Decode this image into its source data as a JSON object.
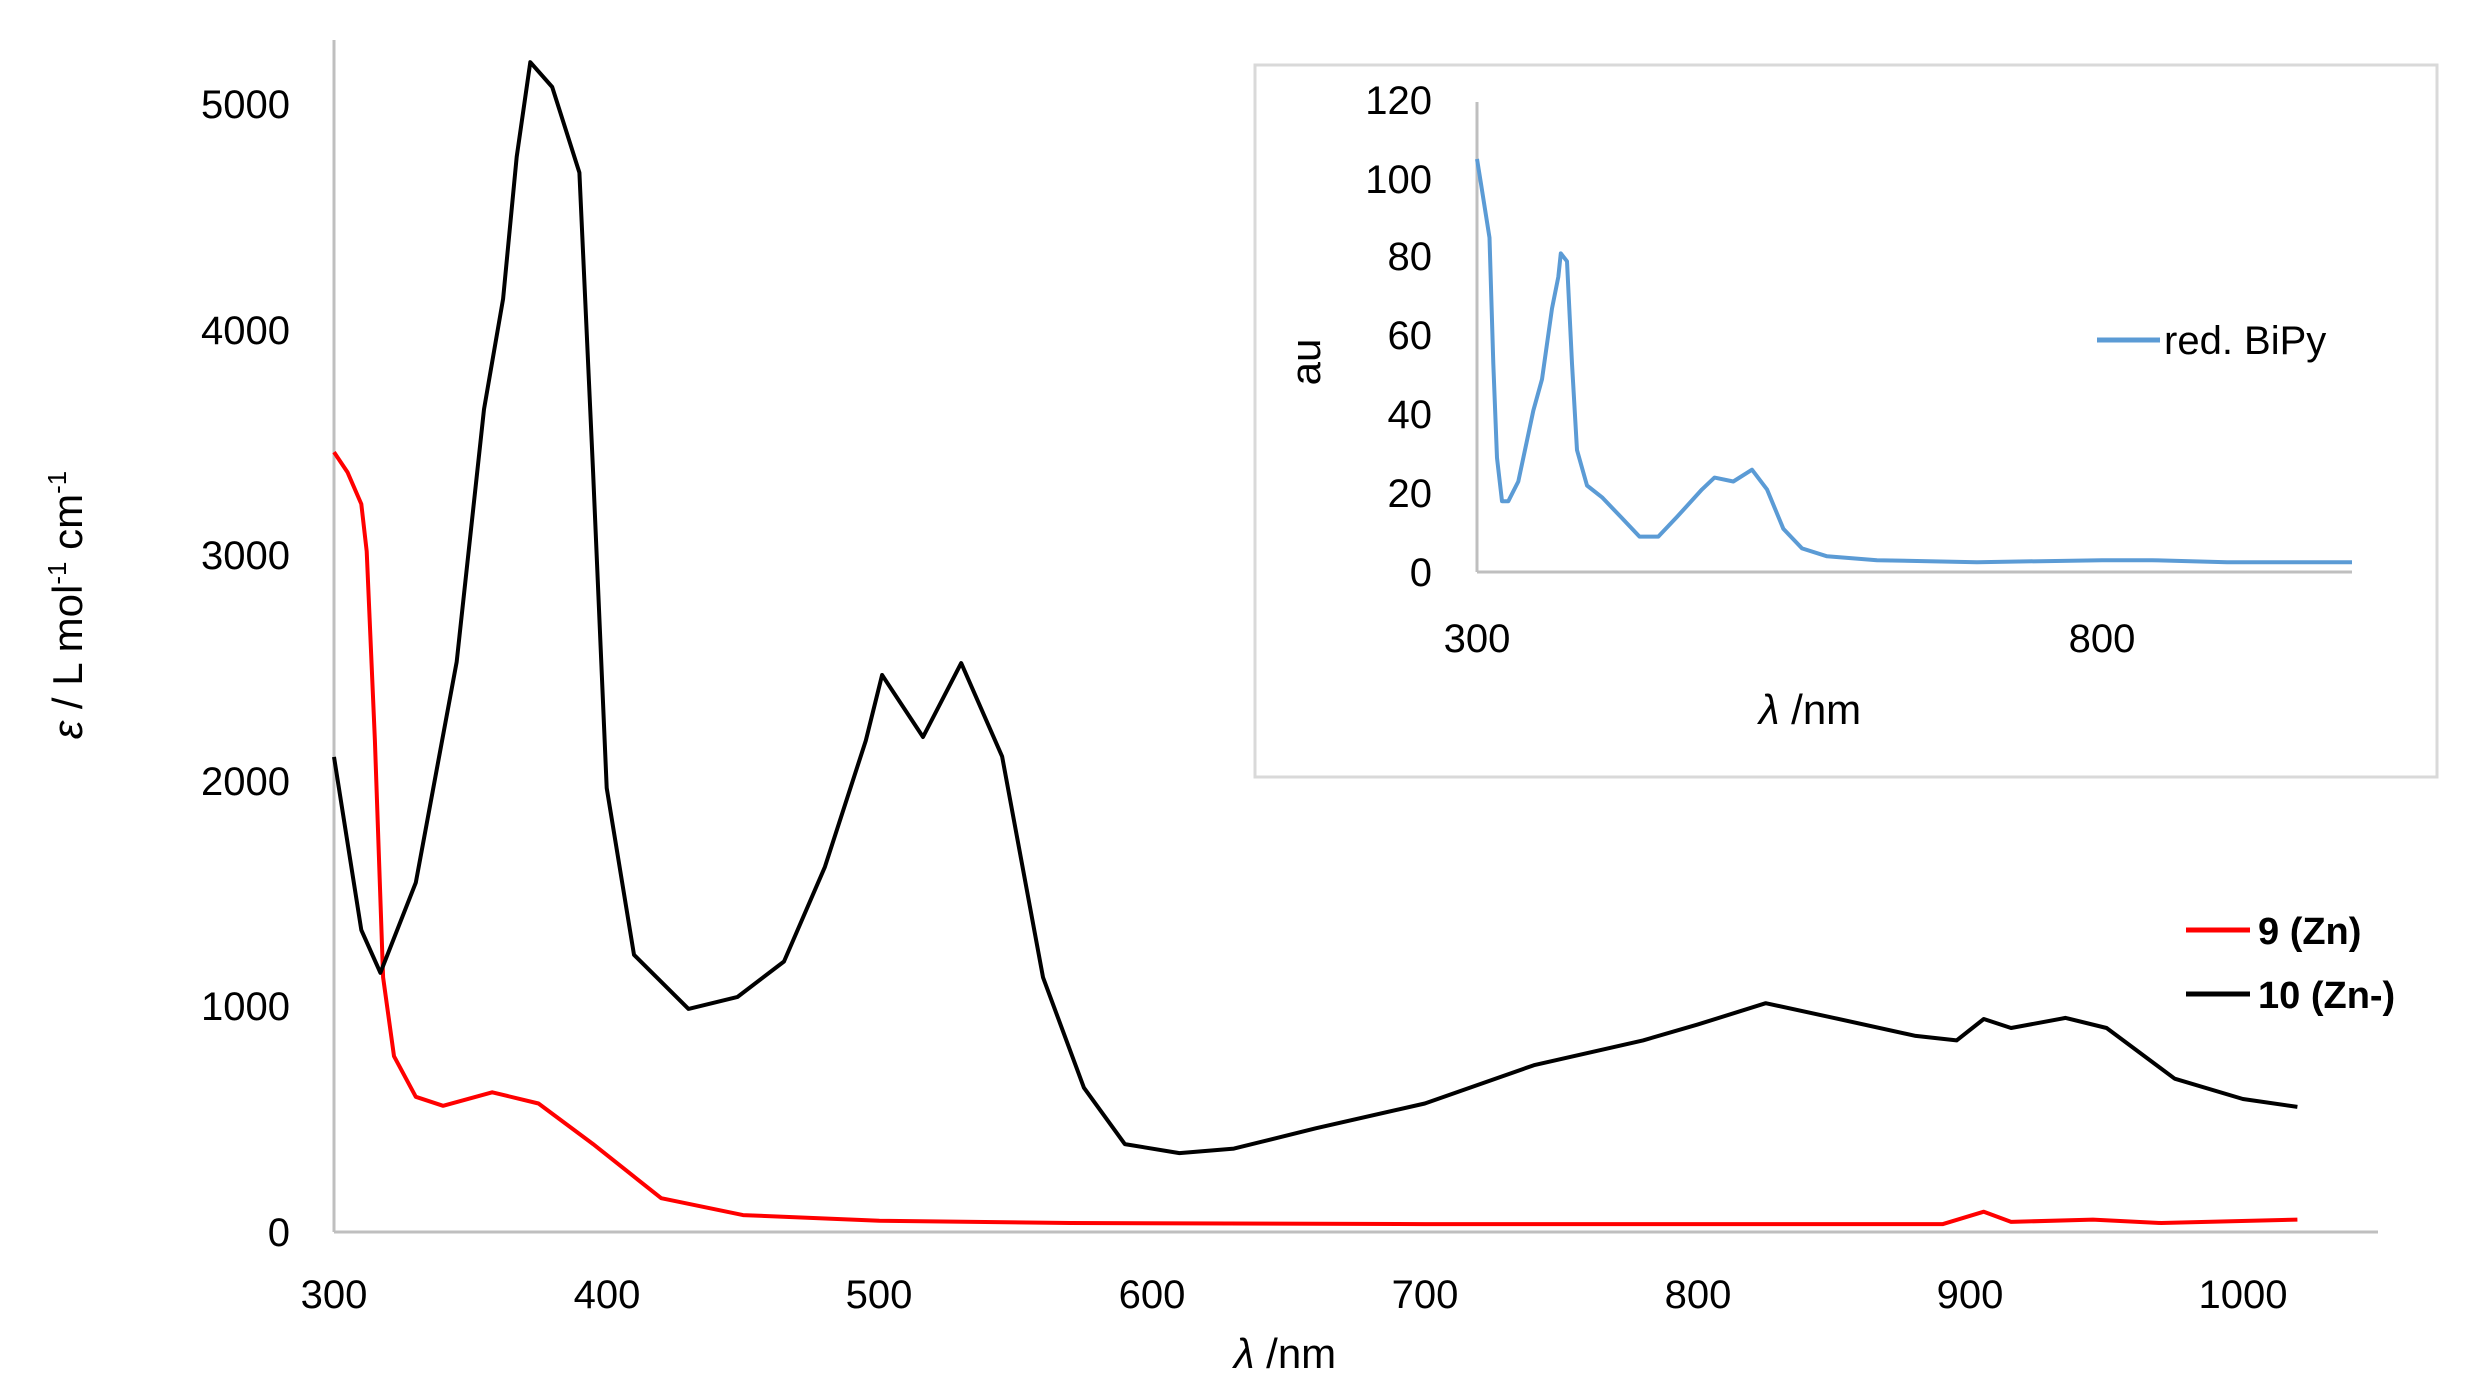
{
  "chart_data": [
    {
      "type": "line",
      "title": "",
      "xlabel": "λ /nm",
      "ylabel": "ε / L mol-1 cm-1",
      "xlim": [
        300,
        1050
      ],
      "ylim": [
        0,
        5200
      ],
      "xticks": [
        300,
        400,
        500,
        600,
        700,
        800,
        900,
        1000
      ],
      "yticks": [
        0,
        1000,
        2000,
        3000,
        4000,
        5000
      ],
      "grid": false,
      "legend_position": "right-middle",
      "series": [
        {
          "name": "9 (Zn)",
          "color": "#ff0000",
          "x": [
            300,
            305,
            310,
            312,
            315,
            318,
            322,
            330,
            340,
            358,
            375,
            395,
            420,
            450,
            500,
            570,
            700,
            890,
            905,
            915,
            945,
            970,
            1020
          ],
          "y": [
            3460,
            3370,
            3230,
            3020,
            2180,
            1130,
            780,
            600,
            560,
            620,
            570,
            390,
            150,
            75,
            50,
            40,
            35,
            35,
            90,
            45,
            55,
            40,
            55
          ]
        },
        {
          "name": "10 (Zn-)",
          "color": "#000000",
          "x": [
            300,
            310,
            317,
            330,
            345,
            355,
            362,
            367,
            372,
            380,
            390,
            395,
            400,
            410,
            430,
            448,
            465,
            480,
            495,
            501,
            516,
            530,
            545,
            560,
            575,
            590,
            610,
            630,
            660,
            700,
            740,
            780,
            800,
            825,
            850,
            880,
            895,
            905,
            915,
            935,
            950,
            975,
            1000,
            1020
          ],
          "y": [
            2108,
            1340,
            1150,
            1550,
            2530,
            3650,
            4140,
            4770,
            5190,
            5080,
            4700,
            3370,
            1970,
            1230,
            990,
            1043,
            1200,
            1620,
            2180,
            2471,
            2196,
            2524,
            2110,
            1130,
            640,
            390,
            350,
            370,
            460,
            570,
            740,
            850,
            920,
            1015,
            950,
            870,
            850,
            945,
            905,
            950,
            905,
            680,
            590,
            555
          ]
        }
      ]
    },
    {
      "type": "line",
      "title": "",
      "xlabel": "λ /nm",
      "ylabel": "au",
      "xlim": [
        300,
        1000
      ],
      "ylim": [
        0,
        120
      ],
      "xticks": [
        300,
        800
      ],
      "yticks": [
        0,
        20,
        40,
        60,
        80,
        100,
        120
      ],
      "grid": false,
      "legend_position": "right",
      "series": [
        {
          "name": "red. BiPy",
          "color": "#5b9bd5",
          "x": [
            300,
            303,
            305,
            310,
            313,
            316,
            320,
            325,
            333,
            345,
            352,
            360,
            365,
            367,
            372,
            376,
            380,
            388,
            400,
            415,
            430,
            445,
            460,
            480,
            490,
            505,
            520,
            532,
            545,
            560,
            580,
            620,
            700,
            800,
            840,
            900,
            1000
          ],
          "y": [
            105,
            99,
            95,
            85,
            53,
            29,
            18,
            18,
            23,
            41,
            49,
            67,
            75,
            81,
            79,
            53,
            31,
            22,
            19,
            14,
            9,
            9,
            14,
            21,
            24,
            23,
            26,
            21,
            11,
            6,
            4,
            3,
            2.5,
            3,
            3,
            2.5,
            2.5
          ]
        }
      ]
    }
  ],
  "main": {
    "y_axis_label_prefix": "ε",
    "y_axis_label_mid": " / L mol",
    "y_axis_label_sup1": "-1",
    "y_axis_label_mid2": " cm",
    "y_axis_label_sup2": "-1",
    "x_axis_label_lambda": "λ",
    "x_axis_label_rest": " /nm",
    "x_tick_labels": [
      "300",
      "400",
      "500",
      "600",
      "700",
      "800",
      "900",
      "1000"
    ],
    "y_tick_labels": [
      "0",
      "1000",
      "2000",
      "3000",
      "4000",
      "5000"
    ],
    "legend": [
      {
        "label": "9 (Zn)",
        "color": "#ff0000"
      },
      {
        "label": "10 (Zn-)",
        "color": "#000000"
      }
    ]
  },
  "inset": {
    "y_axis_label": "au",
    "x_axis_label_lambda": "λ",
    "x_axis_label_rest": " /nm",
    "x_tick_labels": [
      "300",
      "800"
    ],
    "y_tick_labels": [
      "0",
      "20",
      "40",
      "60",
      "80",
      "100",
      "120"
    ],
    "legend": [
      {
        "label": "red. BiPy",
        "color": "#5b9bd5"
      }
    ]
  },
  "style": {
    "axis_color": "#bfbfbf",
    "frame_color": "#d9d9d9"
  }
}
